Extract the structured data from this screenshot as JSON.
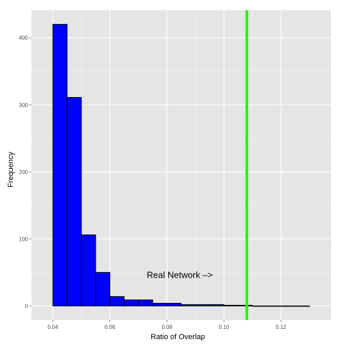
{
  "chart_data": {
    "type": "bar",
    "subtype": "histogram",
    "title": "",
    "xlabel": "Ratio of Overlap",
    "ylabel": "Frequency",
    "xlim": [
      0.0325,
      0.1375
    ],
    "ylim": [
      -21,
      441
    ],
    "x_ticks": [
      0.04,
      0.06,
      0.08,
      0.1,
      0.12
    ],
    "x_tick_labels": [
      "0.04",
      "0.06",
      "0.08",
      "0.10",
      "0.12"
    ],
    "y_ticks": [
      0,
      100,
      200,
      300,
      400
    ],
    "y_tick_labels": [
      "0",
      "100",
      "200",
      "300",
      "400"
    ],
    "bin_width": 0.005,
    "bin_starts": [
      0.04,
      0.045,
      0.05,
      0.055,
      0.06,
      0.065,
      0.07,
      0.075,
      0.08,
      0.085,
      0.09,
      0.095,
      0.1,
      0.105,
      0.11,
      0.115,
      0.12,
      0.125
    ],
    "values": [
      420,
      311,
      106,
      50,
      14,
      9,
      9,
      4,
      4,
      2,
      2,
      2,
      1,
      1,
      0,
      0,
      0,
      0
    ],
    "bar_color": "#0000ff",
    "bar_edge_color": "#000000",
    "panel_background": "#e5e5e5",
    "grid": true,
    "grid_color": "#ffffff",
    "reference_line": {
      "x": 0.108,
      "color": "#22ff00"
    },
    "annotation": {
      "text": "Real Network –>",
      "x": 0.0845,
      "y": 46
    }
  }
}
